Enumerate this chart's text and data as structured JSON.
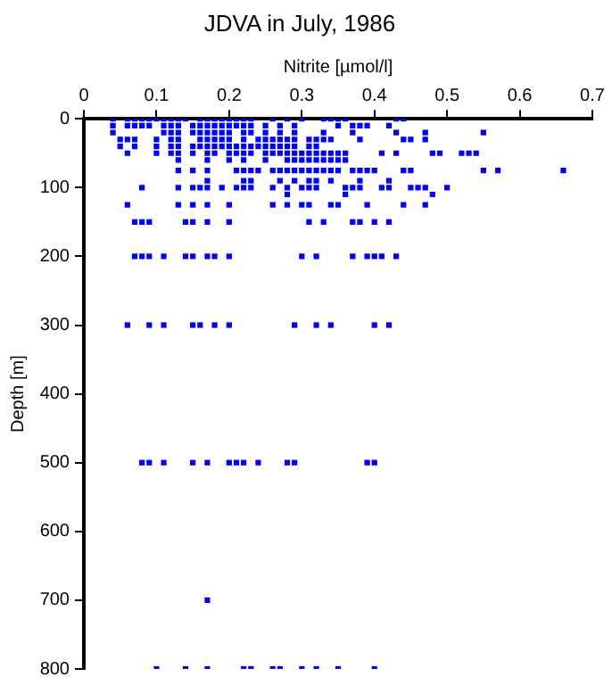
{
  "chart_data": {
    "type": "scatter",
    "title": "JDVA in July, 1986",
    "xlabel": "Nitrite [µmol/l]",
    "ylabel": "Depth [m]",
    "xlim": [
      0,
      0.7
    ],
    "xticks": [
      0,
      0.1,
      0.2,
      0.3,
      0.4,
      0.5,
      0.6,
      0.7
    ],
    "ylim": [
      800,
      0
    ],
    "yticks": [
      0,
      100,
      200,
      300,
      400,
      500,
      600,
      700,
      800
    ],
    "grid": false,
    "legend": false,
    "marker": "square",
    "series": [
      {
        "color": "#0000ff",
        "x": [
          0.04,
          0.06,
          0.07,
          0.08,
          0.09,
          0.1,
          0.11,
          0.12,
          0.13,
          0.14,
          0.16,
          0.17,
          0.18,
          0.19,
          0.2,
          0.21,
          0.22,
          0.23,
          0.26,
          0.28,
          0.3,
          0.33,
          0.34,
          0.35,
          0.36,
          0.43,
          0.44
        ],
        "values": [
          0,
          0,
          0,
          0,
          0,
          0,
          0,
          0,
          0,
          0,
          0,
          0,
          0,
          0,
          0,
          0,
          0,
          0,
          0,
          0,
          0,
          0,
          0,
          0,
          0,
          0,
          0
        ]
      },
      {
        "color": "#0000ff",
        "x": [
          0.04,
          0.06,
          0.07,
          0.08,
          0.09,
          0.11,
          0.12,
          0.13,
          0.15,
          0.16,
          0.17,
          0.18,
          0.19,
          0.2,
          0.21,
          0.22,
          0.23,
          0.25,
          0.27,
          0.29,
          0.35,
          0.37,
          0.38,
          0.39,
          0.42
        ],
        "values": [
          10,
          10,
          10,
          10,
          10,
          10,
          10,
          10,
          10,
          10,
          10,
          10,
          10,
          10,
          10,
          10,
          10,
          10,
          10,
          10,
          10,
          10,
          10,
          10,
          10
        ]
      },
      {
        "color": "#0000ff",
        "x": [
          0.04,
          0.11,
          0.12,
          0.13,
          0.15,
          0.16,
          0.17,
          0.18,
          0.19,
          0.2,
          0.22,
          0.23,
          0.25,
          0.27,
          0.29,
          0.33,
          0.37,
          0.43,
          0.47,
          0.55
        ],
        "values": [
          20,
          20,
          20,
          20,
          20,
          20,
          20,
          20,
          20,
          20,
          20,
          20,
          20,
          20,
          20,
          20,
          20,
          20,
          20,
          20
        ]
      },
      {
        "color": "#0000ff",
        "x": [
          0.05,
          0.06,
          0.07,
          0.1,
          0.12,
          0.13,
          0.16,
          0.17,
          0.18,
          0.19,
          0.2,
          0.22,
          0.24,
          0.25,
          0.26,
          0.27,
          0.28,
          0.29,
          0.31,
          0.32,
          0.33,
          0.34,
          0.38,
          0.44,
          0.45,
          0.47
        ],
        "values": [
          30,
          30,
          30,
          30,
          30,
          30,
          30,
          30,
          30,
          30,
          30,
          30,
          30,
          30,
          30,
          30,
          30,
          30,
          30,
          30,
          30,
          30,
          30,
          30,
          30,
          30
        ]
      },
      {
        "color": "#0000ff",
        "x": [
          0.05,
          0.07,
          0.1,
          0.12,
          0.13,
          0.15,
          0.16,
          0.17,
          0.18,
          0.19,
          0.2,
          0.21,
          0.22,
          0.23,
          0.24,
          0.25,
          0.26,
          0.27,
          0.28,
          0.29,
          0.31,
          0.32
        ],
        "values": [
          40,
          40,
          40,
          40,
          40,
          40,
          40,
          40,
          40,
          40,
          40,
          40,
          40,
          40,
          40,
          40,
          40,
          40,
          40,
          40,
          40,
          40
        ]
      },
      {
        "color": "#0000ff",
        "x": [
          0.06,
          0.1,
          0.12,
          0.13,
          0.15,
          0.17,
          0.18,
          0.2,
          0.21,
          0.22,
          0.23,
          0.25,
          0.26,
          0.27,
          0.28,
          0.29,
          0.3,
          0.31,
          0.32,
          0.33,
          0.34,
          0.35,
          0.36,
          0.41,
          0.43,
          0.48,
          0.49,
          0.52,
          0.53,
          0.54
        ],
        "values": [
          50,
          50,
          50,
          50,
          50,
          50,
          50,
          50,
          50,
          50,
          50,
          50,
          50,
          50,
          50,
          50,
          50,
          50,
          50,
          50,
          50,
          50,
          50,
          50,
          50,
          50,
          50,
          50,
          50,
          50
        ]
      },
      {
        "color": "#0000ff",
        "x": [
          0.13,
          0.17,
          0.2,
          0.22,
          0.25,
          0.28,
          0.29,
          0.3,
          0.31,
          0.32,
          0.33,
          0.34,
          0.35,
          0.36
        ],
        "values": [
          60,
          60,
          60,
          60,
          60,
          60,
          60,
          60,
          60,
          60,
          60,
          60,
          60,
          60
        ]
      },
      {
        "color": "#0000ff",
        "x": [
          0.13,
          0.15,
          0.17,
          0.21,
          0.22,
          0.23,
          0.24,
          0.26,
          0.27,
          0.28,
          0.29,
          0.3,
          0.31,
          0.32,
          0.33,
          0.34,
          0.35,
          0.37,
          0.38,
          0.39,
          0.4,
          0.44,
          0.45,
          0.55,
          0.57,
          0.66
        ],
        "values": [
          75,
          75,
          75,
          75,
          75,
          75,
          75,
          75,
          75,
          75,
          75,
          75,
          75,
          75,
          75,
          75,
          75,
          75,
          75,
          75,
          75,
          75,
          75,
          75,
          75,
          75
        ]
      },
      {
        "color": "#0000ff",
        "x": [
          0.17,
          0.22,
          0.23,
          0.27,
          0.29,
          0.31,
          0.32,
          0.34,
          0.38,
          0.42
        ],
        "values": [
          90,
          90,
          90,
          90,
          90,
          90,
          90,
          90,
          90,
          90
        ]
      },
      {
        "color": "#0000ff",
        "x": [
          0.08,
          0.13,
          0.15,
          0.16,
          0.17,
          0.19,
          0.21,
          0.22,
          0.23,
          0.26,
          0.28,
          0.3,
          0.31,
          0.32,
          0.36,
          0.37,
          0.38,
          0.41,
          0.42,
          0.45,
          0.46,
          0.47,
          0.5
        ],
        "values": [
          100,
          100,
          100,
          100,
          100,
          100,
          100,
          100,
          100,
          100,
          100,
          100,
          100,
          100,
          100,
          100,
          100,
          100,
          100,
          100,
          100,
          100,
          100
        ]
      },
      {
        "color": "#0000ff",
        "x": [
          0.28,
          0.36,
          0.48
        ],
        "values": [
          110,
          110,
          110
        ]
      },
      {
        "color": "#0000ff",
        "x": [
          0.06,
          0.13,
          0.15,
          0.17,
          0.2,
          0.26,
          0.28,
          0.3,
          0.31,
          0.34,
          0.35,
          0.39,
          0.44,
          0.47
        ],
        "values": [
          125,
          125,
          125,
          125,
          125,
          125,
          125,
          125,
          125,
          125,
          125,
          125,
          125,
          125
        ]
      },
      {
        "color": "#0000ff",
        "x": [
          0.07,
          0.08,
          0.09,
          0.14,
          0.15,
          0.17,
          0.2,
          0.31,
          0.33,
          0.37,
          0.38,
          0.4,
          0.42
        ],
        "values": [
          150,
          150,
          150,
          150,
          150,
          150,
          150,
          150,
          150,
          150,
          150,
          150,
          150
        ]
      },
      {
        "color": "#0000ff",
        "x": [
          0.07,
          0.08,
          0.09,
          0.11,
          0.14,
          0.15,
          0.17,
          0.18,
          0.2,
          0.3,
          0.32,
          0.37,
          0.39,
          0.4,
          0.41,
          0.43
        ],
        "values": [
          200,
          200,
          200,
          200,
          200,
          200,
          200,
          200,
          200,
          200,
          200,
          200,
          200,
          200,
          200,
          200
        ]
      },
      {
        "color": "#0000ff",
        "x": [
          0.06,
          0.09,
          0.11,
          0.15,
          0.16,
          0.18,
          0.2,
          0.29,
          0.32,
          0.34,
          0.4,
          0.42
        ],
        "values": [
          300,
          300,
          300,
          300,
          300,
          300,
          300,
          300,
          300,
          300,
          300,
          300
        ]
      },
      {
        "color": "#0000ff",
        "x": [
          0.08,
          0.09,
          0.11,
          0.15,
          0.17,
          0.2,
          0.21,
          0.22,
          0.24,
          0.28,
          0.29,
          0.39,
          0.4
        ],
        "values": [
          500,
          500,
          500,
          500,
          500,
          500,
          500,
          500,
          500,
          500,
          500,
          500,
          500
        ]
      },
      {
        "color": "#0000ff",
        "x": [
          0.17
        ],
        "values": [
          700
        ]
      },
      {
        "color": "#0000ff",
        "x": [
          0.1,
          0.14,
          0.17,
          0.22,
          0.23,
          0.26,
          0.27,
          0.3,
          0.32,
          0.35,
          0.4
        ],
        "values": [
          800,
          800,
          800,
          800,
          800,
          800,
          800,
          800,
          800,
          800,
          800
        ]
      }
    ]
  }
}
